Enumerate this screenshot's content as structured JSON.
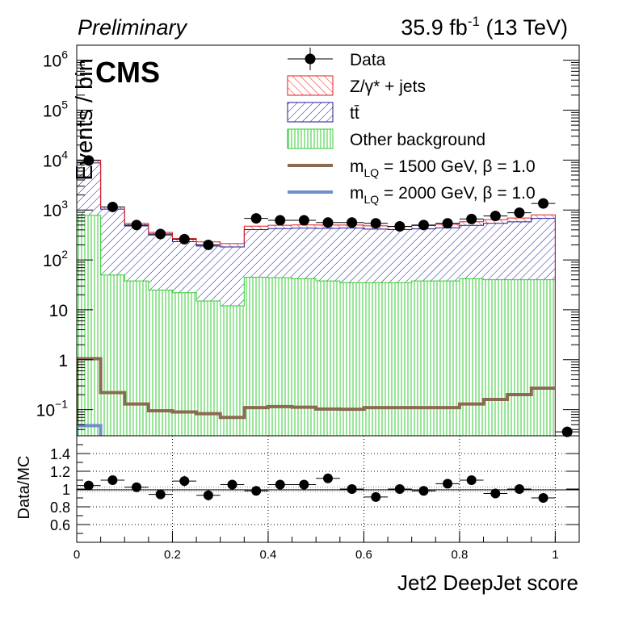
{
  "header": {
    "preliminary": "Preliminary",
    "lumi": "35.9 fb",
    "lumi_exp": "-1",
    "energy": " (13 TeV)",
    "cms": "CMS"
  },
  "chart_data": [
    {
      "type": "bar",
      "panel": "main",
      "ylabel": "Events / bin",
      "yscale": "log",
      "ylim": [
        0.03,
        2000000
      ],
      "xlim": [
        0,
        1.05
      ],
      "bins": [
        0,
        0.05,
        0.1,
        0.15,
        0.2,
        0.25,
        0.3,
        0.35,
        0.4,
        0.45,
        0.5,
        0.55,
        0.6,
        0.65,
        0.7,
        0.75,
        0.8,
        0.85,
        0.9,
        0.95,
        1.0
      ],
      "y_ticks": [
        {
          "value": 0.1,
          "mant": "10",
          "exp": "−1"
        },
        {
          "value": 1,
          "mant": "1",
          "exp": ""
        },
        {
          "value": 10,
          "mant": "10",
          "exp": ""
        },
        {
          "value": 100,
          "mant": "10",
          "exp": "2"
        },
        {
          "value": 1000,
          "mant": "10",
          "exp": "3"
        },
        {
          "value": 10000,
          "mant": "10",
          "exp": "4"
        },
        {
          "value": 100000,
          "mant": "10",
          "exp": "5"
        },
        {
          "value": 1000000,
          "mant": "10",
          "exp": "6"
        }
      ],
      "legend": {
        "placement": "top-right",
        "entries": [
          {
            "label": "Data",
            "sub": "",
            "rest": ""
          },
          {
            "label": "Z/γ* + jets",
            "sub": "",
            "rest": ""
          },
          {
            "label": "tt̄",
            "sub": "",
            "rest": ""
          },
          {
            "label": "Other background",
            "sub": "",
            "rest": ""
          },
          {
            "label": "m",
            "sub": "LQ",
            "rest": " = 1500 GeV, β = 1.0"
          },
          {
            "label": "m",
            "sub": "LQ",
            "rest": " = 2000 GeV, β = 1.0"
          }
        ]
      },
      "colors": {
        "zjets": "#e41a1c",
        "ttbar": "#1a1a9e",
        "other": "#33cc33",
        "lq1500": "#8c6a52",
        "lq2000": "#6e8fc9"
      },
      "series": [
        {
          "name": "Other background",
          "kind": "stack",
          "values": [
            780,
            50,
            38,
            25,
            22,
            15,
            12,
            45,
            44,
            42,
            38,
            35,
            35,
            35,
            38,
            38,
            42,
            40,
            40,
            40,
            500
          ]
        },
        {
          "name": "tt̄",
          "kind": "stack",
          "values": [
            8000,
            990,
            440,
            290,
            210,
            175,
            170,
            360,
            380,
            390,
            390,
            400,
            380,
            370,
            380,
            400,
            450,
            500,
            540,
            640,
            6400
          ]
        },
        {
          "name": "Z/γ* + jets",
          "kind": "stack",
          "values": [
            1200,
            110,
            60,
            40,
            35,
            40,
            30,
            70,
            70,
            70,
            70,
            65,
            65,
            60,
            70,
            80,
            90,
            100,
            110,
            120,
            1200
          ]
        },
        {
          "name": "Data",
          "kind": "points",
          "values": [
            9800,
            1150,
            500,
            330,
            260,
            200,
            null,
            680,
            620,
            620,
            560,
            560,
            540,
            470,
            500,
            540,
            660,
            760,
            880,
            1350,
            null
          ],
          "x_overflow": [
            {
              "x": 1.025,
              "value": 0.036
            }
          ]
        },
        {
          "name": "m_LQ = 1500 GeV, β = 1.0",
          "kind": "line",
          "values": [
            1.05,
            0.22,
            0.13,
            0.095,
            0.09,
            0.083,
            0.07,
            0.11,
            0.115,
            0.112,
            0.103,
            0.102,
            0.11,
            0.11,
            0.11,
            0.11,
            0.13,
            0.16,
            0.2,
            0.27,
            1.05
          ]
        },
        {
          "name": "m_LQ = 2000 GeV, β = 1.0",
          "kind": "line",
          "values": [
            0.048,
            null,
            null,
            null,
            null,
            null,
            null,
            null,
            null,
            null,
            null,
            null,
            null,
            null,
            null,
            null,
            null,
            null,
            null,
            null,
            0.045
          ]
        }
      ]
    },
    {
      "type": "scatter",
      "panel": "ratio",
      "ylabel": "Data/MC",
      "xlabel": "Jet2 DeepJet score",
      "ylim": [
        0.4,
        1.6
      ],
      "xlim": [
        0,
        1.05
      ],
      "y_ticks": [
        0.6,
        0.8,
        1,
        1.2,
        1.4
      ],
      "y_tick_labels": [
        "0.6",
        "0.8",
        "1",
        "1.2",
        "1.4"
      ],
      "x_ticks": [
        0,
        0.2,
        0.4,
        0.6,
        0.8,
        1
      ],
      "x_tick_labels": [
        "0",
        "0.2",
        "0.4",
        "0.6",
        "0.8",
        "1"
      ],
      "grid": true,
      "x": [
        0.025,
        0.075,
        0.125,
        0.175,
        0.225,
        0.275,
        0.325,
        0.375,
        0.425,
        0.475,
        0.525,
        0.575,
        0.625,
        0.675,
        0.725,
        0.775,
        0.825,
        0.875,
        0.925,
        0.975
      ],
      "values": [
        1.04,
        1.1,
        1.02,
        0.94,
        1.09,
        0.93,
        1.05,
        0.98,
        1.05,
        1.05,
        1.12,
        1.0,
        0.91,
        1.0,
        0.98,
        1.06,
        1.1,
        0.95,
        1.0,
        0.9
      ],
      "errors": [
        0.025,
        0.035,
        0.045,
        0.05,
        0.06,
        0.06,
        0.04,
        0.04,
        0.04,
        0.04,
        0.04,
        0.04,
        0.045,
        0.045,
        0.045,
        0.045,
        0.04,
        0.035,
        0.03,
        0.025
      ],
      "band": 0.035
    }
  ]
}
